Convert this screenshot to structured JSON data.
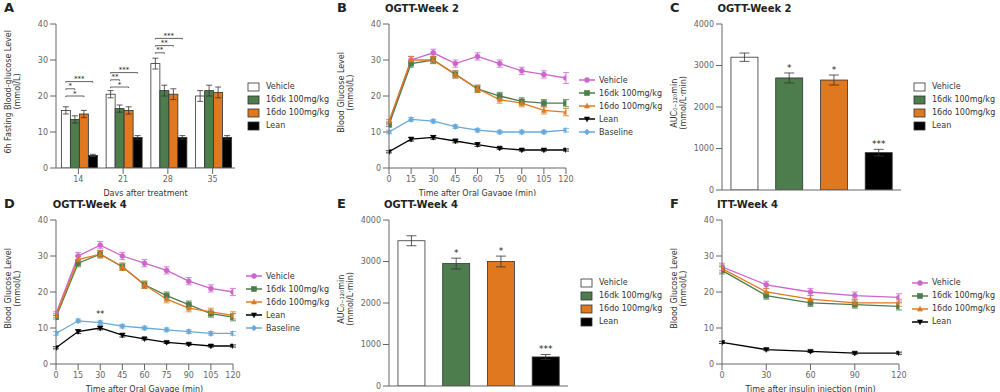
{
  "chart_data": [
    {
      "type": "bar",
      "title": "A",
      "xlabel": "Days after treatment",
      "ylabel": "6h Fasting Blood-glucose Level\n(mmol/L)",
      "categories": [
        "14",
        "21",
        "28",
        "35"
      ],
      "series": [
        {
          "name": "Vehicle",
          "color": "white",
          "values": [
            16.0,
            20.5,
            29.0,
            20.0
          ],
          "errors": [
            1.0,
            1.0,
            1.5,
            1.5
          ]
        },
        {
          "name": "16dk 100mg/kg",
          "color": "#4d7c4d",
          "values": [
            13.5,
            16.5,
            21.5,
            21.5
          ],
          "errors": [
            1.0,
            1.0,
            1.5,
            1.5
          ]
        },
        {
          "name": "16do 100mg/kg",
          "color": "#e07820",
          "values": [
            15.0,
            16.0,
            20.5,
            21.0
          ],
          "errors": [
            1.0,
            1.0,
            1.5,
            1.5
          ]
        },
        {
          "name": "Lean",
          "color": "black",
          "values": [
            3.5,
            8.5,
            8.5,
            8.5
          ],
          "errors": [
            0.3,
            0.5,
            0.5,
            0.5
          ]
        }
      ],
      "ylim": [
        0,
        40
      ],
      "yticks": [
        0,
        10,
        20,
        30,
        40
      ],
      "grid": false,
      "legend": "right",
      "annotations": [
        {
          "category": "14",
          "from": "Vehicle",
          "to": "16do 100mg/kg",
          "y": 20,
          "text": "*"
        },
        {
          "category": "14",
          "from": "Vehicle",
          "to": "16dk 100mg/kg",
          "y": 22,
          "text": "*"
        },
        {
          "category": "14",
          "from": "Vehicle",
          "to": "Lean",
          "y": 24,
          "text": "***"
        },
        {
          "category": "21",
          "from": "Vehicle",
          "to": "16do 100mg/kg",
          "y": 22.5,
          "text": "*"
        },
        {
          "category": "21",
          "from": "Vehicle",
          "to": "16dk 100mg/kg",
          "y": 24.5,
          "text": "**"
        },
        {
          "category": "21",
          "from": "Vehicle",
          "to": "Lean",
          "y": 26.5,
          "text": "***"
        },
        {
          "category": "28",
          "from": "Vehicle",
          "to": "16dk 100mg/kg",
          "y": 32,
          "text": "**"
        },
        {
          "category": "28",
          "from": "Vehicle",
          "to": "16do 100mg/kg",
          "y": 34,
          "text": "**"
        },
        {
          "category": "28",
          "from": "Vehicle",
          "to": "Lean",
          "y": 36,
          "text": "***"
        }
      ]
    },
    {
      "type": "line",
      "title": "OGTT-Week 2",
      "xlabel": "Time after Oral Gavage (min)",
      "ylabel": "Blood Glucose Level\n(mmol/L)",
      "x": [
        0,
        15,
        30,
        45,
        60,
        75,
        90,
        105,
        120
      ],
      "series": [
        {
          "name": "Vehicle",
          "color": "#cc66cc",
          "marker": "circle",
          "values": [
            12.5,
            30.0,
            32.0,
            29.0,
            31.0,
            29.0,
            27.0,
            26.0,
            25.0
          ],
          "errors": [
            0.5,
            1.0,
            1.0,
            1.0,
            1.0,
            1.0,
            1.0,
            1.0,
            1.5
          ]
        },
        {
          "name": "16dk 100mg/kg",
          "color": "#4d7c4d",
          "marker": "square",
          "values": [
            12.0,
            29.0,
            30.0,
            26.0,
            22.0,
            20.0,
            18.5,
            18.0,
            18.0
          ],
          "errors": [
            0.5,
            1.0,
            1.0,
            1.0,
            1.0,
            1.0,
            1.0,
            1.0,
            1.0
          ]
        },
        {
          "name": "16do 100mg/kg",
          "color": "#e07820",
          "marker": "triangle",
          "values": [
            13.0,
            30.0,
            30.0,
            26.0,
            22.0,
            19.0,
            18.0,
            16.0,
            15.5
          ],
          "errors": [
            0.5,
            1.0,
            1.0,
            1.0,
            1.0,
            1.0,
            1.0,
            1.0,
            1.0
          ]
        },
        {
          "name": "Lean",
          "color": "black",
          "marker": "triangle-down",
          "values": [
            4.5,
            8.0,
            8.5,
            7.5,
            6.5,
            5.5,
            5.0,
            5.0,
            5.0
          ],
          "errors": [
            0.3,
            0.5,
            0.5,
            0.5,
            0.5,
            0.3,
            0.3,
            0.3,
            0.3
          ]
        },
        {
          "name": "Baseline",
          "color": "#66aadd",
          "marker": "diamond",
          "values": [
            10.0,
            13.5,
            13.0,
            11.5,
            10.5,
            10.0,
            10.0,
            10.0,
            10.5
          ],
          "errors": [
            0.5,
            0.5,
            0.5,
            0.5,
            0.5,
            0.5,
            0.5,
            0.5,
            0.5
          ]
        }
      ],
      "xlim": [
        0,
        120
      ],
      "xticks": [
        0,
        15,
        30,
        45,
        60,
        75,
        90,
        105,
        120
      ],
      "ylim": [
        0,
        40
      ],
      "yticks": [
        0,
        10,
        20,
        30,
        40
      ],
      "grid": false,
      "legend": "right",
      "annotations": [
        {
          "text": "B"
        }
      ]
    },
    {
      "type": "bar",
      "title": "OGTT-Week 2",
      "ylabel": "AUC₀₋₁₂₀min\n(mmol/L·min)",
      "categories": [
        "Vehicle",
        "16dk 100mg/kg",
        "16do 100mg/kg",
        "Lean"
      ],
      "colors": [
        "white",
        "#4d7c4d",
        "#e07820",
        "black"
      ],
      "values": [
        3200,
        2700,
        2650,
        900
      ],
      "errors": [
        100,
        120,
        120,
        80
      ],
      "ylim": [
        0,
        4000
      ],
      "yticks": [
        0,
        1000,
        2000,
        3000,
        4000
      ],
      "tick_labels": "y",
      "grid": false,
      "legend": "right",
      "annotations": [
        {
          "text": "C"
        },
        {
          "category": "16dk 100mg/kg",
          "text": "*"
        },
        {
          "category": "16do 100mg/kg",
          "text": "*"
        },
        {
          "category": "Lean",
          "text": "***"
        }
      ]
    },
    {
      "type": "line",
      "title": "OGTT-Week 4",
      "xlabel": "Time after Oral Gavage (min)",
      "ylabel": "Blood Glucose Level\n(mmol/L)",
      "x": [
        0,
        15,
        30,
        45,
        60,
        75,
        90,
        105,
        120
      ],
      "series": [
        {
          "name": "Vehicle",
          "color": "#cc66cc",
          "marker": "circle",
          "values": [
            14.0,
            30.0,
            33.0,
            30.0,
            28.0,
            26.0,
            23.0,
            21.0,
            20.0
          ],
          "errors": [
            0.5,
            1.0,
            1.0,
            1.0,
            1.0,
            1.0,
            1.0,
            1.0,
            1.0
          ]
        },
        {
          "name": "16dk 100mg/kg",
          "color": "#4d7c4d",
          "marker": "square",
          "values": [
            13.0,
            28.0,
            30.5,
            27.0,
            22.0,
            19.0,
            16.5,
            14.0,
            13.0
          ],
          "errors": [
            0.5,
            1.0,
            1.0,
            1.0,
            1.0,
            1.0,
            1.0,
            1.0,
            1.0
          ]
        },
        {
          "name": "16do 100mg/kg",
          "color": "#e07820",
          "marker": "triangle",
          "values": [
            13.5,
            29.0,
            30.5,
            27.0,
            22.0,
            18.0,
            15.5,
            14.5,
            13.5
          ],
          "errors": [
            0.5,
            1.0,
            1.0,
            1.0,
            1.0,
            1.0,
            1.0,
            1.0,
            1.0
          ]
        },
        {
          "name": "Lean",
          "color": "black",
          "marker": "triangle-down",
          "values": [
            4.5,
            9.0,
            10.0,
            8.0,
            7.0,
            6.0,
            5.5,
            5.0,
            5.0
          ],
          "errors": [
            0.3,
            0.5,
            0.5,
            0.5,
            0.3,
            0.3,
            0.3,
            0.3,
            0.3
          ]
        },
        {
          "name": "Baseline",
          "color": "#66aadd",
          "marker": "diamond",
          "values": [
            8.5,
            12.0,
            11.5,
            10.5,
            10.0,
            9.5,
            9.0,
            8.5,
            8.5
          ],
          "errors": [
            0.5,
            0.5,
            0.5,
            0.5,
            0.5,
            0.5,
            0.5,
            0.5,
            0.5
          ]
        }
      ],
      "xlim": [
        0,
        120
      ],
      "xticks": [
        0,
        15,
        30,
        45,
        60,
        75,
        90,
        105,
        120
      ],
      "ylim": [
        0,
        40
      ],
      "yticks": [
        0,
        10,
        20,
        30,
        40
      ],
      "grid": false,
      "legend": "right",
      "annotations": [
        {
          "text": "D"
        },
        {
          "x": 30,
          "y": 13,
          "text": "**"
        }
      ]
    },
    {
      "type": "bar",
      "title": "OGTT-Week 4",
      "ylabel": "AUC₀₋₁₂₀min\n(mmol/L·min)",
      "categories": [
        "Vehicle",
        "16dk 100mg/kg",
        "16do 100mg/kg",
        "Lean"
      ],
      "colors": [
        "white",
        "#4d7c4d",
        "#e07820",
        "black"
      ],
      "values": [
        3500,
        2950,
        3000,
        700
      ],
      "errors": [
        120,
        130,
        130,
        60
      ],
      "ylim": [
        0,
        4000
      ],
      "yticks": [
        0,
        1000,
        2000,
        3000,
        4000
      ],
      "tick_labels": "y",
      "grid": false,
      "legend": "right",
      "annotations": [
        {
          "text": "E"
        },
        {
          "category": "16dk 100mg/kg",
          "text": "*"
        },
        {
          "category": "16do 100mg/kg",
          "text": "*"
        },
        {
          "category": "Lean",
          "text": "***"
        }
      ]
    },
    {
      "type": "line",
      "title": "ITT-Week 4",
      "xlabel": "Time after insulin injection (min)",
      "ylabel": "Blood Glucose Level\n(mmol/L)",
      "x": [
        0,
        30,
        60,
        90,
        120
      ],
      "series": [
        {
          "name": "Vehicle",
          "color": "#cc66cc",
          "marker": "circle",
          "values": [
            27.0,
            22.0,
            20.0,
            19.0,
            18.5
          ],
          "errors": [
            1.0,
            1.0,
            1.0,
            1.0,
            1.0
          ]
        },
        {
          "name": "16dk 100mg/kg",
          "color": "#4d7c4d",
          "marker": "square",
          "values": [
            26.0,
            19.0,
            17.0,
            16.5,
            16.0
          ],
          "errors": [
            1.0,
            1.0,
            1.0,
            1.0,
            1.0
          ]
        },
        {
          "name": "16do 100mg/kg",
          "color": "#e07820",
          "marker": "triangle",
          "values": [
            26.5,
            20.0,
            18.0,
            17.0,
            17.0
          ],
          "errors": [
            1.0,
            1.0,
            1.0,
            1.0,
            1.0
          ]
        },
        {
          "name": "Lean",
          "color": "black",
          "marker": "triangle-down",
          "values": [
            6.0,
            4.0,
            3.5,
            3.0,
            3.0
          ],
          "errors": [
            0.3,
            0.3,
            0.3,
            0.3,
            0.3
          ]
        }
      ],
      "xlim": [
        0,
        120
      ],
      "xticks": [
        0,
        30,
        60,
        90,
        120
      ],
      "ylim": [
        0,
        40
      ],
      "yticks": [
        0,
        10,
        20,
        30,
        40
      ],
      "grid": false,
      "legend": "right",
      "annotations": [
        {
          "text": "F"
        }
      ]
    }
  ]
}
